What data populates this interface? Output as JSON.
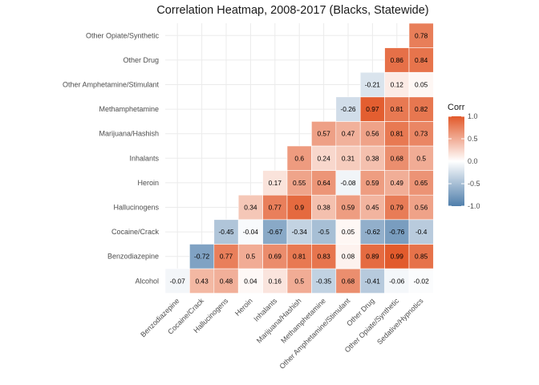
{
  "chart_data": {
    "type": "heatmap",
    "title": "Correlation Heatmap, 2008-2017 (Blacks, Statewide)",
    "x_categories": [
      "Benzodiazepine",
      "Cocaine/Crack",
      "Hallucinogens",
      "Heroin",
      "Inhalants",
      "Marijuana/Hashish",
      "Methamphetamine",
      "Other Amphetamine/Stimulant",
      "Other Drug",
      "Other Opiate/Synthetic",
      "Sedative/Hypnotics"
    ],
    "y_categories": [
      "Alcohol",
      "Benzodiazepine",
      "Cocaine/Crack",
      "Hallucinogens",
      "Heroin",
      "Inhalants",
      "Marijuana/Hashish",
      "Methamphetamine",
      "Other Amphetamine/Stimulant",
      "Other Drug",
      "Other Opiate/Synthetic"
    ],
    "values": [
      [
        -0.07,
        0.43,
        0.48,
        0.04,
        0.16,
        0.5,
        -0.35,
        0.68,
        -0.41,
        -0.06,
        -0.02
      ],
      [
        null,
        -0.72,
        0.77,
        0.5,
        0.69,
        0.81,
        0.83,
        0.08,
        0.89,
        0.99,
        0.85
      ],
      [
        null,
        null,
        -0.45,
        -0.04,
        -0.67,
        -0.34,
        -0.5,
        0.05,
        -0.62,
        -0.76,
        -0.4
      ],
      [
        null,
        null,
        null,
        0.34,
        0.77,
        0.9,
        0.38,
        0.59,
        0.45,
        0.79,
        0.56
      ],
      [
        null,
        null,
        null,
        null,
        0.17,
        0.55,
        0.64,
        -0.08,
        0.59,
        0.49,
        0.65
      ],
      [
        null,
        null,
        null,
        null,
        null,
        0.6,
        0.24,
        0.31,
        0.38,
        0.68,
        0.5
      ],
      [
        null,
        null,
        null,
        null,
        null,
        null,
        0.57,
        0.47,
        0.56,
        0.81,
        0.73
      ],
      [
        null,
        null,
        null,
        null,
        null,
        null,
        null,
        -0.26,
        0.97,
        0.81,
        0.82
      ],
      [
        null,
        null,
        null,
        null,
        null,
        null,
        null,
        null,
        -0.21,
        0.12,
        0.05
      ],
      [
        null,
        null,
        null,
        null,
        null,
        null,
        null,
        null,
        null,
        0.86,
        0.84
      ],
      [
        null,
        null,
        null,
        null,
        null,
        null,
        null,
        null,
        null,
        null,
        0.78
      ]
    ],
    "color_scale": {
      "low": "#4f7eab",
      "mid": "#ffffff",
      "high": "#e2592a",
      "range": [
        -1,
        1
      ]
    },
    "legend": {
      "title": "Corr",
      "ticks": [
        1.0,
        0.5,
        0.0,
        -0.5,
        -1.0
      ],
      "tick_labels": [
        "1.0",
        "0.5",
        "0.0",
        "-0.5",
        "-1.0"
      ],
      "position": "right"
    },
    "grid": true
  }
}
